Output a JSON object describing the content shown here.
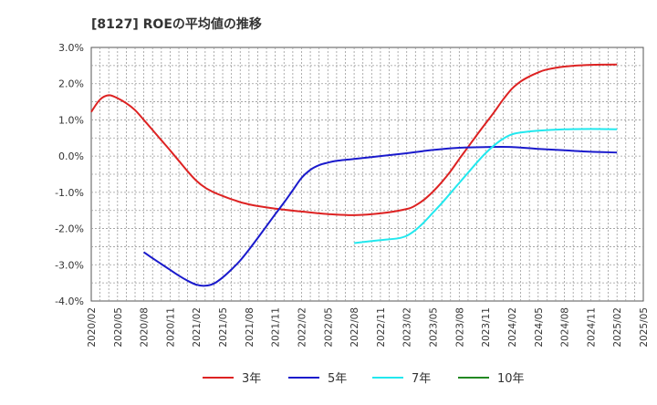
{
  "chart_data": {
    "type": "line",
    "title": "[8127]  ROEの平均値の推移",
    "xlabel": "",
    "ylabel": "",
    "ylim": [
      -4.0,
      3.0
    ],
    "y_ticks": [
      3.0,
      2.0,
      1.0,
      0.0,
      -1.0,
      -2.0,
      -3.0,
      -4.0
    ],
    "y_tick_labels": [
      "3.0%",
      "2.0%",
      "1.0%",
      "0.0%",
      "-1.0%",
      "-2.0%",
      "-3.0%",
      "-4.0%"
    ],
    "x_ticks": [
      "2020/02",
      "2020/05",
      "2020/08",
      "2020/11",
      "2021/02",
      "2021/05",
      "2021/08",
      "2021/11",
      "2022/02",
      "2022/05",
      "2022/08",
      "2022/11",
      "2023/02",
      "2023/05",
      "2023/08",
      "2023/11",
      "2024/02",
      "2024/05",
      "2024/08",
      "2024/11",
      "2025/02",
      "2025/05"
    ],
    "grid": true,
    "legend_position": "bottom",
    "series": [
      {
        "name": "3年",
        "color": "#dd2222",
        "points": [
          [
            "2020/02",
            1.22
          ],
          [
            "2020/03",
            1.56
          ],
          [
            "2020/04",
            1.68
          ],
          [
            "2020/05",
            1.6
          ],
          [
            "2020/06",
            1.46
          ],
          [
            "2020/07",
            1.27
          ],
          [
            "2020/08",
            1.0
          ],
          [
            "2020/09",
            0.72
          ],
          [
            "2020/10",
            0.44
          ],
          [
            "2020/11",
            0.16
          ],
          [
            "2020/12",
            -0.13
          ],
          [
            "2021/01",
            -0.42
          ],
          [
            "2021/02",
            -0.68
          ],
          [
            "2021/03",
            -0.87
          ],
          [
            "2021/04",
            -1.0
          ],
          [
            "2021/05",
            -1.1
          ],
          [
            "2021/06",
            -1.19
          ],
          [
            "2021/07",
            -1.27
          ],
          [
            "2021/08",
            -1.33
          ],
          [
            "2021/09",
            -1.38
          ],
          [
            "2021/11",
            -1.45
          ],
          [
            "2022/02",
            -1.53
          ],
          [
            "2022/05",
            -1.6
          ],
          [
            "2022/08",
            -1.63
          ],
          [
            "2022/11",
            -1.58
          ],
          [
            "2023/02",
            -1.46
          ],
          [
            "2023/03",
            -1.36
          ],
          [
            "2023/04",
            -1.2
          ],
          [
            "2023/05",
            -0.98
          ],
          [
            "2023/06",
            -0.72
          ],
          [
            "2023/07",
            -0.42
          ],
          [
            "2023/08",
            -0.08
          ],
          [
            "2023/09",
            0.25
          ],
          [
            "2023/10",
            0.58
          ],
          [
            "2023/11",
            0.9
          ],
          [
            "2023/12",
            1.22
          ],
          [
            "2024/01",
            1.56
          ],
          [
            "2024/02",
            1.86
          ],
          [
            "2024/03",
            2.06
          ],
          [
            "2024/04",
            2.2
          ],
          [
            "2024/05",
            2.31
          ],
          [
            "2024/06",
            2.39
          ],
          [
            "2024/08",
            2.47
          ],
          [
            "2024/11",
            2.52
          ],
          [
            "2025/02",
            2.53
          ]
        ]
      },
      {
        "name": "5年",
        "color": "#1a1acc",
        "points": [
          [
            "2020/08",
            -2.65
          ],
          [
            "2020/09",
            -2.82
          ],
          [
            "2020/10",
            -2.98
          ],
          [
            "2020/11",
            -3.14
          ],
          [
            "2020/12",
            -3.3
          ],
          [
            "2021/01",
            -3.44
          ],
          [
            "2021/02",
            -3.55
          ],
          [
            "2021/03",
            -3.58
          ],
          [
            "2021/04",
            -3.52
          ],
          [
            "2021/05",
            -3.35
          ],
          [
            "2021/06",
            -3.13
          ],
          [
            "2021/07",
            -2.88
          ],
          [
            "2021/08",
            -2.58
          ],
          [
            "2021/09",
            -2.26
          ],
          [
            "2021/10",
            -1.93
          ],
          [
            "2021/11",
            -1.6
          ],
          [
            "2021/12",
            -1.28
          ],
          [
            "2022/01",
            -0.94
          ],
          [
            "2022/02",
            -0.6
          ],
          [
            "2022/03",
            -0.38
          ],
          [
            "2022/04",
            -0.25
          ],
          [
            "2022/05",
            -0.18
          ],
          [
            "2022/06",
            -0.13
          ],
          [
            "2022/08",
            -0.08
          ],
          [
            "2022/11",
            0.0
          ],
          [
            "2023/02",
            0.08
          ],
          [
            "2023/05",
            0.17
          ],
          [
            "2023/08",
            0.23
          ],
          [
            "2023/11",
            0.25
          ],
          [
            "2024/02",
            0.25
          ],
          [
            "2024/05",
            0.2
          ],
          [
            "2024/08",
            0.16
          ],
          [
            "2024/11",
            0.12
          ],
          [
            "2025/02",
            0.1
          ]
        ]
      },
      {
        "name": "7年",
        "color": "#22e8ee",
        "points": [
          [
            "2022/08",
            -2.4
          ],
          [
            "2022/11",
            -2.32
          ],
          [
            "2023/01",
            -2.27
          ],
          [
            "2023/02",
            -2.2
          ],
          [
            "2023/03",
            -2.04
          ],
          [
            "2023/04",
            -1.82
          ],
          [
            "2023/05",
            -1.56
          ],
          [
            "2023/06",
            -1.3
          ],
          [
            "2023/07",
            -1.02
          ],
          [
            "2023/08",
            -0.74
          ],
          [
            "2023/09",
            -0.46
          ],
          [
            "2023/10",
            -0.18
          ],
          [
            "2023/11",
            0.08
          ],
          [
            "2023/12",
            0.3
          ],
          [
            "2024/01",
            0.48
          ],
          [
            "2024/02",
            0.6
          ],
          [
            "2024/03",
            0.65
          ],
          [
            "2024/05",
            0.7
          ],
          [
            "2024/08",
            0.74
          ],
          [
            "2024/11",
            0.75
          ],
          [
            "2025/02",
            0.74
          ]
        ]
      },
      {
        "name": "10年",
        "color": "#228822",
        "points": []
      }
    ]
  }
}
